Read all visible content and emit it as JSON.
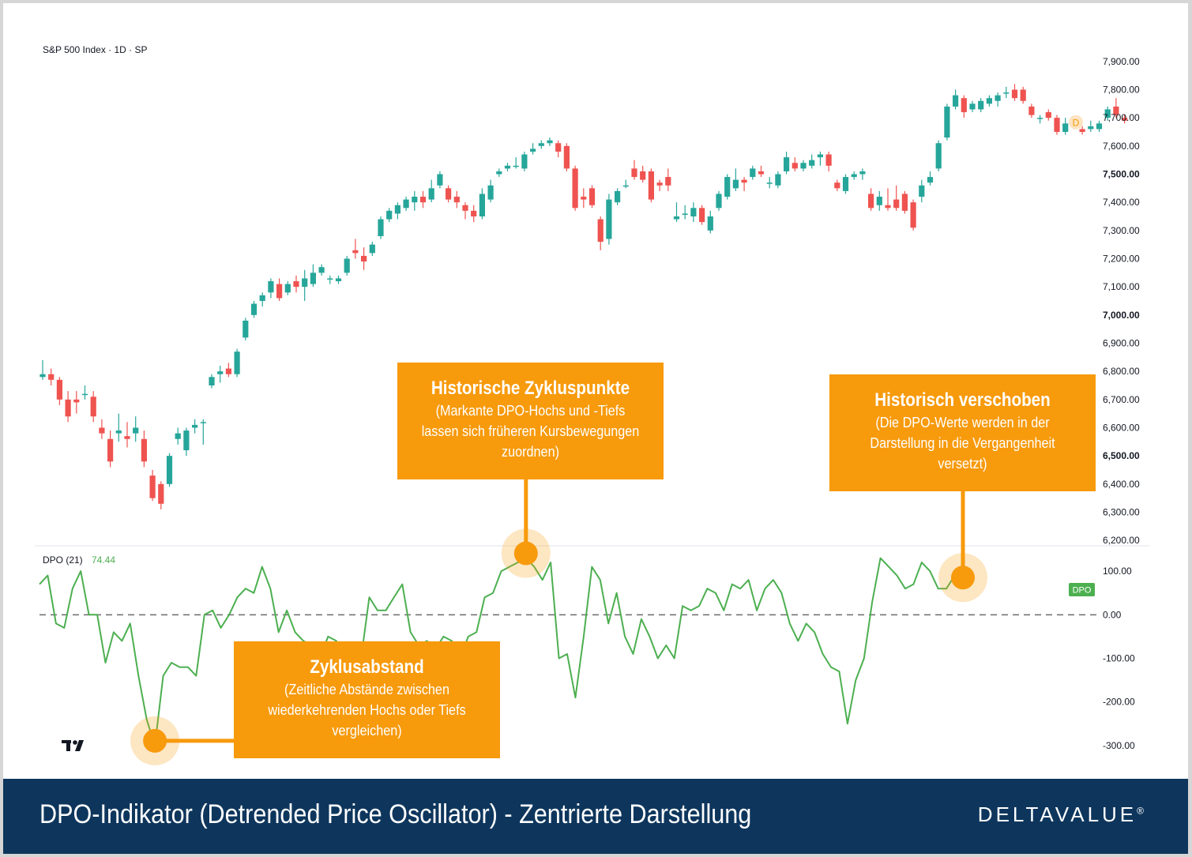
{
  "chart_title": "S&P 500 Index · 1D · SP",
  "indicator": {
    "label": "DPO (21)",
    "value": "74.44",
    "tag": "DPO"
  },
  "last_price_badge": "D",
  "colors": {
    "up": "#26a69a",
    "down": "#ef5350",
    "dpo_line": "#4caf50",
    "callout": "#f79a0c",
    "footer": "#0e365d"
  },
  "chart_data": [
    {
      "type": "candlestick",
      "title": "S&P 500 Index · 1D · SP",
      "ylim": [
        6150,
        7950
      ],
      "yticks": [
        6200,
        6300,
        6400,
        6500,
        6600,
        6700,
        6800,
        6900,
        7000,
        7100,
        7200,
        7300,
        7400,
        7500,
        7600,
        7700,
        7800,
        7900
      ],
      "ytick_labels": [
        "6,200.00",
        "6,300.00",
        "6,400.00",
        "6,500.00",
        "6,600.00",
        "6,700.00",
        "6,800.00",
        "6,900.00",
        "7,000.00",
        "7,100.00",
        "7,200.00",
        "7,300.00",
        "7,400.00",
        "7,500.00",
        "7,600.00",
        "7,700.00",
        "7,800.00",
        "7,900.00"
      ],
      "bold_ticks": [
        "6,500.00",
        "7,000.00",
        "7,500.00"
      ],
      "candles": [
        [
          6780,
          6840,
          6770,
          6790
        ],
        [
          6790,
          6810,
          6750,
          6770
        ],
        [
          6770,
          6780,
          6680,
          6700
        ],
        [
          6700,
          6730,
          6620,
          6640
        ],
        [
          6700,
          6730,
          6650,
          6690
        ],
        [
          6720,
          6750,
          6700,
          6720
        ],
        [
          6710,
          6730,
          6620,
          6640
        ],
        [
          6600,
          6630,
          6560,
          6580
        ],
        [
          6560,
          6590,
          6460,
          6480
        ],
        [
          6580,
          6650,
          6550,
          6590
        ],
        [
          6570,
          6620,
          6530,
          6560
        ],
        [
          6580,
          6640,
          6550,
          6600
        ],
        [
          6560,
          6590,
          6460,
          6480
        ],
        [
          6430,
          6450,
          6340,
          6350
        ],
        [
          6400,
          6410,
          6310,
          6330
        ],
        [
          6400,
          6510,
          6390,
          6500
        ],
        [
          6560,
          6600,
          6540,
          6580
        ],
        [
          6520,
          6600,
          6500,
          6590
        ],
        [
          6600,
          6630,
          6580,
          6610
        ],
        [
          6620,
          6630,
          6540,
          6620
        ],
        [
          6750,
          6790,
          6740,
          6780
        ],
        [
          6790,
          6820,
          6760,
          6800
        ],
        [
          6810,
          6830,
          6780,
          6790
        ],
        [
          6790,
          6880,
          6780,
          6870
        ],
        [
          6920,
          6990,
          6910,
          6980
        ],
        [
          7000,
          7050,
          6990,
          7040
        ],
        [
          7050,
          7080,
          7030,
          7070
        ],
        [
          7080,
          7130,
          7060,
          7120
        ],
        [
          7110,
          7130,
          7050,
          7060
        ],
        [
          7080,
          7120,
          7070,
          7110
        ],
        [
          7120,
          7140,
          7080,
          7100
        ],
        [
          7100,
          7160,
          7050,
          7130
        ],
        [
          7110,
          7180,
          7100,
          7150
        ],
        [
          7150,
          7180,
          7140,
          7170
        ],
        [
          7130,
          7140,
          7110,
          7130
        ],
        [
          7120,
          7140,
          7110,
          7130
        ],
        [
          7150,
          7210,
          7140,
          7200
        ],
        [
          7230,
          7270,
          7200,
          7220
        ],
        [
          7210,
          7240,
          7160,
          7190
        ],
        [
          7220,
          7260,
          7210,
          7250
        ],
        [
          7280,
          7350,
          7270,
          7340
        ],
        [
          7340,
          7380,
          7330,
          7370
        ],
        [
          7360,
          7400,
          7340,
          7390
        ],
        [
          7380,
          7420,
          7370,
          7410
        ],
        [
          7400,
          7440,
          7370,
          7420
        ],
        [
          7420,
          7440,
          7380,
          7400
        ],
        [
          7410,
          7480,
          7400,
          7450
        ],
        [
          7460,
          7510,
          7450,
          7500
        ],
        [
          7450,
          7460,
          7400,
          7410
        ],
        [
          7420,
          7440,
          7380,
          7400
        ],
        [
          7390,
          7400,
          7340,
          7370
        ],
        [
          7370,
          7390,
          7330,
          7350
        ],
        [
          7350,
          7450,
          7340,
          7430
        ],
        [
          7410,
          7480,
          7400,
          7460
        ],
        [
          7500,
          7520,
          7490,
          7510
        ],
        [
          7520,
          7540,
          7510,
          7530
        ],
        [
          7530,
          7560,
          7520,
          7530
        ],
        [
          7520,
          7580,
          7510,
          7570
        ],
        [
          7580,
          7610,
          7570,
          7590
        ],
        [
          7600,
          7620,
          7590,
          7610
        ],
        [
          7610,
          7630,
          7600,
          7620
        ],
        [
          7610,
          7620,
          7560,
          7580
        ],
        [
          7600,
          7610,
          7510,
          7520
        ],
        [
          7520,
          7530,
          7370,
          7380
        ],
        [
          7420,
          7450,
          7380,
          7410
        ],
        [
          7450,
          7460,
          7380,
          7390
        ],
        [
          7340,
          7350,
          7230,
          7260
        ],
        [
          7270,
          7430,
          7250,
          7410
        ],
        [
          7400,
          7450,
          7390,
          7440
        ],
        [
          7460,
          7480,
          7450,
          7460
        ],
        [
          7520,
          7550,
          7480,
          7490
        ],
        [
          7510,
          7530,
          7470,
          7480
        ],
        [
          7510,
          7520,
          7400,
          7410
        ],
        [
          7470,
          7480,
          7440,
          7460
        ],
        [
          7490,
          7520,
          7440,
          7460
        ],
        [
          7340,
          7400,
          7330,
          7350
        ],
        [
          7360,
          7390,
          7340,
          7360
        ],
        [
          7350,
          7400,
          7330,
          7380
        ],
        [
          7380,
          7390,
          7320,
          7330
        ],
        [
          7300,
          7370,
          7290,
          7350
        ],
        [
          7380,
          7440,
          7370,
          7430
        ],
        [
          7420,
          7500,
          7410,
          7490
        ],
        [
          7450,
          7520,
          7440,
          7480
        ],
        [
          7480,
          7490,
          7440,
          7470
        ],
        [
          7490,
          7530,
          7480,
          7520
        ],
        [
          7510,
          7530,
          7490,
          7500
        ],
        [
          7470,
          7490,
          7450,
          7470
        ],
        [
          7460,
          7510,
          7450,
          7500
        ],
        [
          7510,
          7580,
          7500,
          7560
        ],
        [
          7540,
          7560,
          7510,
          7520
        ],
        [
          7520,
          7550,
          7510,
          7540
        ],
        [
          7530,
          7570,
          7520,
          7550
        ],
        [
          7560,
          7580,
          7530,
          7570
        ],
        [
          7570,
          7580,
          7510,
          7530
        ],
        [
          7470,
          7480,
          7440,
          7450
        ],
        [
          7440,
          7500,
          7430,
          7490
        ],
        [
          7490,
          7510,
          7480,
          7500
        ],
        [
          7500,
          7520,
          7480,
          7510
        ],
        [
          7430,
          7450,
          7370,
          7380
        ],
        [
          7390,
          7440,
          7370,
          7420
        ],
        [
          7390,
          7450,
          7370,
          7380
        ],
        [
          7410,
          7460,
          7370,
          7380
        ],
        [
          7430,
          7440,
          7360,
          7370
        ],
        [
          7400,
          7410,
          7300,
          7310
        ],
        [
          7420,
          7480,
          7400,
          7460
        ],
        [
          7470,
          7510,
          7460,
          7490
        ],
        [
          7520,
          7620,
          7510,
          7610
        ],
        [
          7630,
          7750,
          7620,
          7740
        ],
        [
          7740,
          7800,
          7730,
          7780
        ],
        [
          7770,
          7780,
          7700,
          7720
        ],
        [
          7730,
          7760,
          7720,
          7750
        ],
        [
          7730,
          7770,
          7720,
          7760
        ],
        [
          7750,
          7780,
          7740,
          7770
        ],
        [
          7760,
          7790,
          7740,
          7780
        ],
        [
          7790,
          7810,
          7770,
          7790
        ],
        [
          7800,
          7820,
          7760,
          7770
        ],
        [
          7800,
          7810,
          7750,
          7760
        ],
        [
          7740,
          7750,
          7700,
          7710
        ],
        [
          7700,
          7710,
          7680,
          7700
        ],
        [
          7720,
          7730,
          7690,
          7700
        ],
        [
          7700,
          7710,
          7640,
          7650
        ],
        [
          7650,
          7700,
          7640,
          7680
        ],
        [
          7670,
          7700,
          7660,
          7680
        ],
        [
          7660,
          7670,
          7640,
          7650
        ],
        [
          7660,
          7690,
          7650,
          7670
        ],
        [
          7660,
          7690,
          7650,
          7680
        ],
        [
          7700,
          7740,
          7690,
          7730
        ],
        [
          7740,
          7770,
          7700,
          7710
        ],
        [
          7700,
          7710,
          7680,
          7690
        ]
      ]
    },
    {
      "type": "line",
      "series": [
        {
          "name": "DPO",
          "values": [
            70,
            90,
            -20,
            -30,
            60,
            100,
            0,
            0,
            -110,
            -40,
            -60,
            -20,
            -140,
            -240,
            -300,
            -140,
            -110,
            -120,
            -120,
            -140,
            0,
            10,
            -30,
            0,
            40,
            60,
            50,
            110,
            60,
            -40,
            10,
            -40,
            -60,
            -70,
            -100,
            -50,
            -60,
            -100,
            -80,
            -100,
            40,
            10,
            10,
            40,
            70,
            -40,
            -70,
            -60,
            -80,
            -50,
            -60,
            -100,
            -50,
            -40,
            40,
            50,
            100,
            110,
            120,
            130,
            110,
            80,
            120,
            -100,
            -90,
            -190,
            -50,
            110,
            80,
            -20,
            50,
            -50,
            -90,
            -10,
            -50,
            -100,
            -70,
            -100,
            20,
            10,
            20,
            60,
            50,
            10,
            70,
            60,
            80,
            10,
            60,
            80,
            50,
            -20,
            -60,
            -20,
            -40,
            -90,
            -120,
            -130,
            -250,
            -150,
            -100,
            30,
            130,
            110,
            90,
            60,
            70,
            120,
            100,
            60,
            60,
            90,
            74.44
          ]
        }
      ],
      "ylim": [
        -340,
        160
      ],
      "yticks": [
        100,
        0,
        -100,
        -200,
        -300
      ],
      "ytick_labels": [
        "100.00",
        "0.00",
        "-100.00",
        "-200.00",
        "-300.00"
      ],
      "baseline": 0
    }
  ],
  "callouts": {
    "zyklus": {
      "title": "Zyklusabstand",
      "text": "(Zeitliche Abstände zwischen wiederkehrenden Hochs oder Tiefs vergleichen)"
    },
    "historisch_punkte": {
      "title": "Historische Zykluspunkte",
      "text": "(Markante DPO-Hochs und -Tiefs lassen sich früheren Kursbewegungen zuordnen)"
    },
    "verschoben": {
      "title": "Historisch verschoben",
      "text": "(Die DPO-Werte werden in der Darstellung in die Vergangenheit versetzt)"
    }
  },
  "footer": {
    "title": "DPO-Indikator (Detrended Price Oscillator) - Zentrierte Darstellung",
    "brand": "DELTAVALUE",
    "brand_mark": "®"
  }
}
